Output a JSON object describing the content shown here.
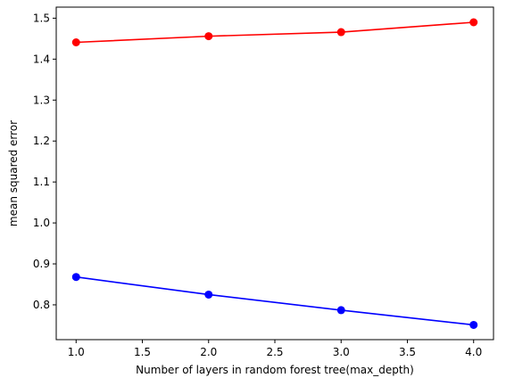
{
  "chart_data": {
    "type": "line",
    "xlabel": "Number of layers in random forest tree(max_depth)",
    "ylabel": "mean squared error",
    "x": [
      1,
      2,
      3,
      4
    ],
    "xlim": [
      0.85,
      4.15
    ],
    "ylim": [
      0.715,
      1.527
    ],
    "xticks": [
      1.0,
      1.5,
      2.0,
      2.5,
      3.0,
      3.5,
      4.0
    ],
    "xtick_labels": [
      "1.0",
      "1.5",
      "2.0",
      "2.5",
      "3.0",
      "3.5",
      "4.0"
    ],
    "yticks": [
      0.8,
      0.9,
      1.0,
      1.1,
      1.2,
      1.3,
      1.4,
      1.5
    ],
    "ytick_labels": [
      "0.8",
      "0.9",
      "1.0",
      "1.1",
      "1.2",
      "1.3",
      "1.4",
      "1.5"
    ],
    "grid": false,
    "series": [
      {
        "color": "#ff0000",
        "marker": "circle",
        "values": [
          1.441,
          1.456,
          1.466,
          1.49
        ]
      },
      {
        "color": "#0000ff",
        "marker": "circle",
        "values": [
          0.868,
          0.825,
          0.787,
          0.751
        ]
      }
    ]
  }
}
